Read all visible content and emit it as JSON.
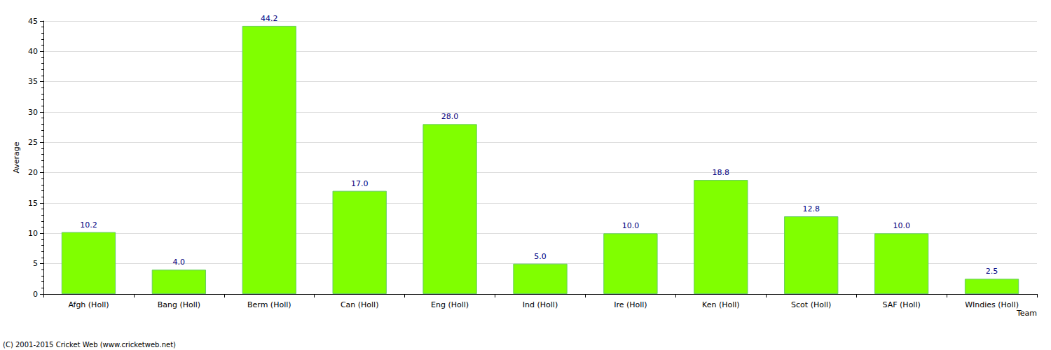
{
  "chart_data": {
    "type": "bar",
    "categories": [
      "Afgh (Holl)",
      "Bang (Holl)",
      "Berm (Holl)",
      "Can (Holl)",
      "Eng (Holl)",
      "Ind (Holl)",
      "Ire (Holl)",
      "Ken (Holl)",
      "Scot (Holl)",
      "SAF (Holl)",
      "WIndies (Holl)"
    ],
    "values": [
      10.2,
      4.0,
      44.2,
      17.0,
      28.0,
      5.0,
      10.0,
      18.8,
      12.8,
      10.0,
      2.5
    ],
    "value_labels": [
      "10.2",
      "4.0",
      "44.2",
      "17.0",
      "28.0",
      "5.0",
      "10.0",
      "18.8",
      "12.8",
      "10.0",
      "2.5"
    ],
    "color": "#80ff00",
    "xlabel": "Team",
    "ylabel": "Average",
    "ylim": [
      0,
      45
    ],
    "yticks": [
      0,
      5,
      10,
      15,
      20,
      25,
      30,
      35,
      40,
      45
    ],
    "grid": true,
    "data_labels": true,
    "annotations": [
      "(C) 2001-2015 Cricket Web (www.cricketweb.net)"
    ]
  }
}
